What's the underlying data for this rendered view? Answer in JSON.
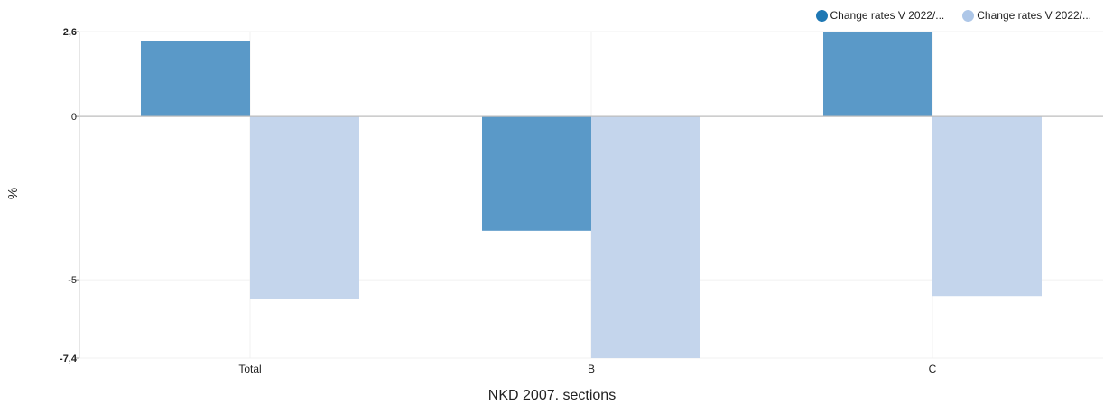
{
  "chart_data": {
    "type": "bar",
    "categories": [
      "Total",
      "B",
      "C"
    ],
    "series": [
      {
        "name": "Change rates V 2022/...",
        "color": "#5a99c8",
        "values": [
          2.3,
          -3.5,
          2.6
        ]
      },
      {
        "name": "Change rates V 2022/...",
        "color": "#c4d5ec",
        "values": [
          -5.6,
          -7.4,
          -5.5
        ]
      }
    ],
    "legend_colors": [
      "#1f78b4",
      "#aec7e8"
    ],
    "ylim": [
      -7.4,
      2.6
    ],
    "yticks": [
      {
        "value": 2.6,
        "label": "2,6",
        "bold": true
      },
      {
        "value": 0,
        "label": "0",
        "bold": false
      },
      {
        "value": -5,
        "label": "-5",
        "bold": false
      },
      {
        "value": -7.4,
        "label": "-7,4",
        "bold": true
      }
    ],
    "xlabel": "NKD 2007. sections",
    "ylabel": "%",
    "grid": true,
    "legend_position": "top-right"
  }
}
